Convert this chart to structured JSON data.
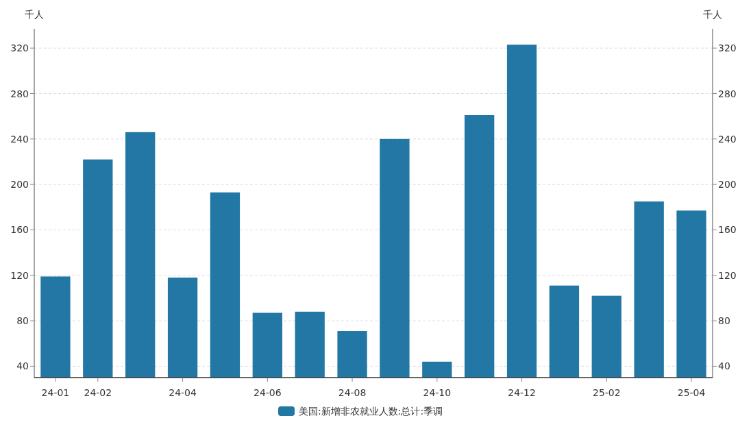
{
  "chart_data": {
    "type": "bar",
    "ylabel": "千人",
    "y2label": "千人",
    "categories": [
      "24-01",
      "24-02",
      null,
      "24-04",
      null,
      "24-06",
      null,
      "24-08",
      null,
      "24-10",
      null,
      "24-12",
      null,
      "25-02",
      null,
      "25-04"
    ],
    "series": [
      {
        "name": "美国:新增非农就业人数:总计:季调",
        "color": "#2277a4",
        "values": [
          119,
          222,
          246,
          118,
          193,
          87,
          88,
          71,
          240,
          44,
          261,
          323,
          111,
          102,
          185,
          177
        ]
      }
    ],
    "ylim": [
      30,
      337
    ],
    "yticks": [
      40,
      80,
      120,
      160,
      200,
      240,
      280,
      320
    ],
    "y2lim": [
      30,
      337
    ],
    "y2ticks": [
      40,
      80,
      120,
      160,
      200,
      240,
      280,
      320
    ],
    "grid": "y",
    "legend": "bottom"
  }
}
